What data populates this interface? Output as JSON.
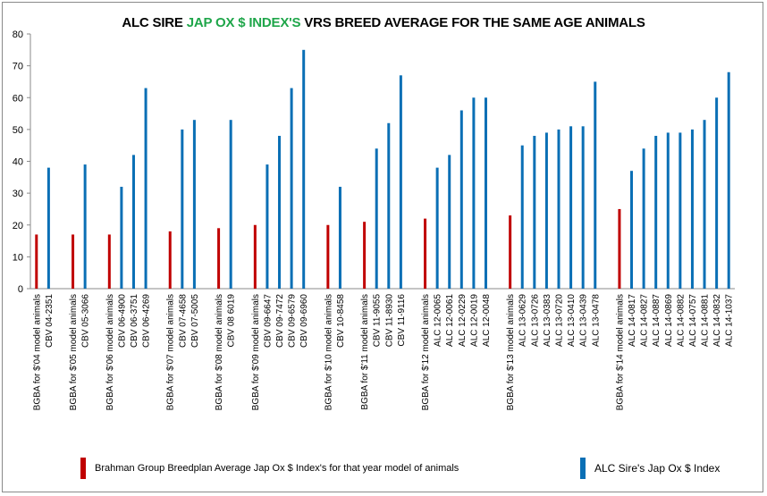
{
  "title": {
    "part1": "ALC SIRE ",
    "part2": "JAP OX $ INDEX'S",
    "part3": " VRS BREED AVERAGE FOR THE SAME AGE ANIMALS",
    "highlight_color": "#1fa64a"
  },
  "legend": {
    "red_label": "Brahman Group Breedplan Average Jap Ox $ Index's for that year model of animals",
    "blue_label": "ALC Sire's Jap Ox $ Index",
    "placement": "bottom"
  },
  "colors": {
    "breed_average": "#c00000",
    "sire": "#0a6fb5"
  },
  "chart_data": {
    "type": "bar",
    "title": "ALC SIRE JAP OX $ INDEX'S VRS BREED AVERAGE FOR THE SAME AGE ANIMALS",
    "xlabel": "",
    "ylabel": "",
    "ylim": [
      0,
      80
    ],
    "yticks": [
      0,
      10,
      20,
      30,
      40,
      50,
      60,
      70,
      80
    ],
    "grid": false,
    "categories": [
      "BGBA for $'04 model animals",
      "CBV 04-2351",
      "",
      "BGBA for $'05 model animals",
      "CBV 05-3066",
      "",
      "BGBA for $'06 model animals",
      "CBV 06-4900",
      "CBV 06-3751",
      "CBV 06-4269",
      "",
      "BGBA for $'07 model animals",
      "CBV 07-4658",
      "CBV 07-5005",
      "",
      "BGBA for $'08 model animals",
      "CBV 08 6019",
      "",
      "BGBA for $'09 model animals",
      "CBV 09-6647",
      "CBV 09-7472",
      "CBV 09-6579",
      "CBV 09-6960",
      "",
      "BGBA for $'10 model animals",
      "CBV 10-8458",
      "",
      "BGBA for $'11 model animals",
      "CBV 11-9055",
      "CBV 11-8930",
      "CBV 11-9116",
      "",
      "BGBA for $'12 model animals",
      "ALC 12-0065",
      "ALC 12-0061",
      "ALC 12-0229",
      "ALC 12-0019",
      "ALC 12-0048",
      "",
      "BGBA for $'13 model animals",
      "ALC 13-0629",
      "ALC 13-0726",
      "ALC 13-0383",
      "ALC 13-0720",
      "ALC 13-0410",
      "ALC 13-0439",
      "ALC 13-0478",
      "",
      "BGBA for $'14 model animals",
      "ALC 14-0817",
      "ALC 14-0827",
      "ALC 14-0887",
      "ALC 14-0869",
      "ALC 14-0882",
      "ALC 14-0757",
      "ALC 14-0881",
      "ALC 14-0832",
      "ALC 14-1037"
    ],
    "series": [
      {
        "name": "Brahman Group Breedplan Average Jap Ox $ Index's for that year model of animals",
        "color": "#c00000",
        "values": [
          17,
          null,
          null,
          17,
          null,
          null,
          17,
          null,
          null,
          null,
          null,
          18,
          null,
          null,
          null,
          19,
          null,
          null,
          20,
          null,
          null,
          null,
          null,
          null,
          20,
          null,
          null,
          21,
          null,
          null,
          null,
          null,
          22,
          null,
          null,
          null,
          null,
          null,
          null,
          23,
          null,
          null,
          null,
          null,
          null,
          null,
          null,
          null,
          25,
          null,
          null,
          null,
          null,
          null,
          null,
          null,
          null,
          null
        ]
      },
      {
        "name": "ALC Sire's Jap Ox $ Index",
        "color": "#0a6fb5",
        "values": [
          null,
          38,
          null,
          null,
          39,
          null,
          null,
          32,
          42,
          63,
          null,
          null,
          50,
          53,
          null,
          null,
          53,
          null,
          null,
          39,
          48,
          63,
          75,
          null,
          null,
          32,
          null,
          null,
          44,
          52,
          67,
          null,
          null,
          38,
          42,
          56,
          60,
          60,
          null,
          null,
          45,
          48,
          49,
          50,
          51,
          51,
          65,
          null,
          null,
          37,
          44,
          48,
          49,
          49,
          50,
          53,
          60,
          68
        ]
      }
    ]
  }
}
